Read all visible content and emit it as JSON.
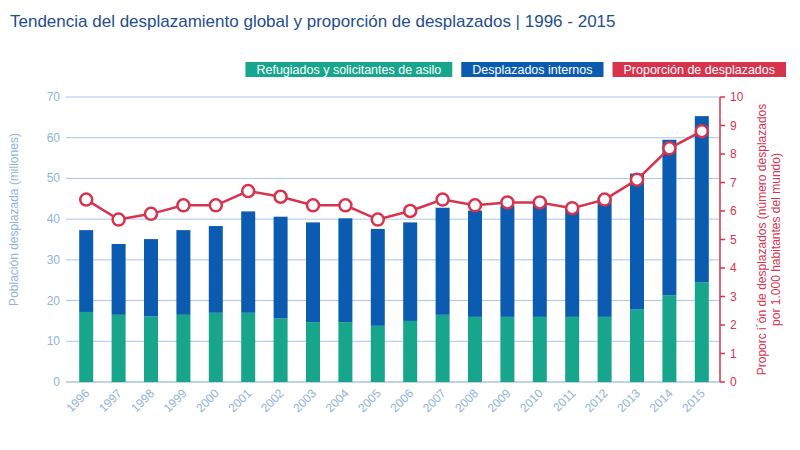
{
  "chart_data": {
    "type": "bar",
    "title": "Tendencia del desplazamiento global y proporción de desplazados | 1996 - 2015",
    "stacked": true,
    "grid": true,
    "legend": "top",
    "ylabel": "Población desplazada (millones)",
    "y2label": [
      "Proporc i´ón de desplazados (número desplazados",
      "por 1.000 habitantes del mundo)"
    ],
    "categories": [
      "1996",
      "1997",
      "1998",
      "1999",
      "2000",
      "2001",
      "2002",
      "2003",
      "2004",
      "2005",
      "2006",
      "2007",
      "2008",
      "2009",
      "2010",
      "2011",
      "2012",
      "2013",
      "2014",
      "2015"
    ],
    "series": [
      {
        "name": "Refugiados y solicitantes de asilo",
        "color": "#17a58b",
        "values": [
          17.2,
          16.5,
          16.1,
          16.5,
          17.0,
          17.0,
          15.6,
          14.7,
          14.7,
          13.8,
          15.0,
          16.5,
          16.0,
          16.0,
          16.0,
          16.0,
          16.0,
          17.8,
          21.3,
          24.5
        ]
      },
      {
        "name": "Desplazados internos",
        "color": "#0b5cb0",
        "values": [
          20.1,
          17.4,
          19.0,
          20.8,
          21.3,
          24.9,
          25.0,
          24.5,
          25.5,
          23.8,
          24.2,
          26.3,
          26.1,
          27.3,
          27.7,
          26.5,
          29.2,
          33.4,
          38.2,
          40.8
        ]
      },
      {
        "name": "Proporción de desplazados",
        "color": "#d8334d",
        "type": "line",
        "axis": "y2",
        "marker": "circle",
        "values": [
          6.4,
          5.7,
          5.9,
          6.2,
          6.2,
          6.7,
          6.5,
          6.2,
          6.2,
          5.7,
          6.0,
          6.4,
          6.2,
          6.3,
          6.3,
          6.1,
          6.4,
          7.1,
          8.2,
          8.8
        ]
      }
    ],
    "ylim": [
      0,
      70
    ],
    "yticks": [
      0,
      10,
      20,
      30,
      40,
      50,
      60,
      70
    ],
    "y2lim": [
      0,
      10
    ],
    "y2ticks": [
      0,
      1,
      2,
      3,
      4,
      5,
      6,
      7,
      8,
      9,
      10
    ]
  }
}
